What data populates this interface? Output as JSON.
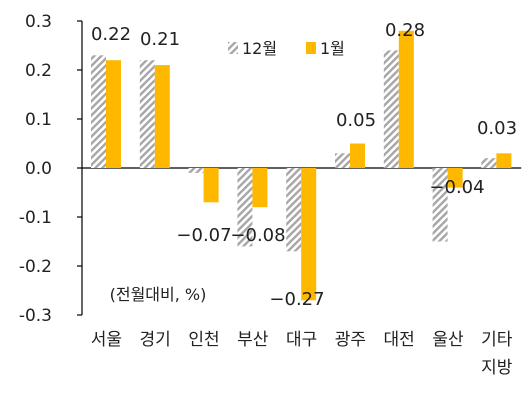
{
  "chart_data": {
    "type": "bar",
    "unit_note": "(전월대비, %)",
    "categories": [
      [
        "서울"
      ],
      [
        "경기"
      ],
      [
        "인천"
      ],
      [
        "부산"
      ],
      [
        "대구"
      ],
      [
        "광주"
      ],
      [
        "대전"
      ],
      [
        "울산"
      ],
      [
        "기타",
        "지방"
      ]
    ],
    "series": [
      {
        "name": "12월",
        "values": [
          0.23,
          0.22,
          -0.01,
          -0.16,
          -0.17,
          0.03,
          0.24,
          -0.15,
          0.02
        ],
        "style": "hatched",
        "color": "#a6a6a6",
        "labels": []
      },
      {
        "name": "1월",
        "values": [
          0.22,
          0.21,
          -0.07,
          -0.08,
          -0.27,
          0.05,
          0.28,
          -0.04,
          0.03
        ],
        "style": "solid",
        "color": "#ffb800",
        "labels": [
          "0.22",
          "0.21",
          "−0.07",
          "−0.08",
          "−0.27",
          "0.05",
          "0.28",
          "−0.04",
          "0.03"
        ]
      }
    ],
    "y_ticks": [
      "0.3",
      "0.2",
      "0.1",
      "0.0",
      "-0.1",
      "-0.2",
      "-0.3"
    ],
    "ylim": [
      -0.3,
      0.3
    ],
    "grid": false,
    "legend_position": "top-right"
  }
}
